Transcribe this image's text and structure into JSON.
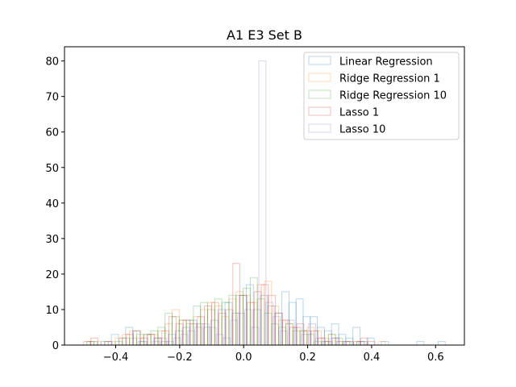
{
  "chart_data": {
    "type": "histogram",
    "title": "A1 E3 Set B",
    "xlabel": "",
    "ylabel": "",
    "xlim": [
      -0.56,
      0.69
    ],
    "ylim": [
      0,
      84
    ],
    "xticks": [
      -0.4,
      -0.2,
      0.0,
      0.2,
      0.4,
      0.6
    ],
    "xtick_labels": [
      "−0.4",
      "−0.2",
      "0.0",
      "0.2",
      "0.4",
      "0.6"
    ],
    "yticks": [
      0,
      10,
      20,
      30,
      40,
      50,
      60,
      70,
      80
    ],
    "ytick_labels": [
      "0",
      "10",
      "20",
      "30",
      "40",
      "50",
      "60",
      "70",
      "80"
    ],
    "legend_position": "top-right",
    "series": [
      {
        "name": "Linear Regression",
        "color": "#1f77b4",
        "bin_start": -0.48,
        "bin_width": 0.0222,
        "counts": [
          1,
          0,
          1,
          3,
          0,
          5,
          4,
          1,
          3,
          2,
          1,
          3,
          4,
          5,
          7,
          6,
          5,
          7,
          10,
          12,
          9,
          14,
          17,
          10,
          14,
          11,
          9,
          15,
          12,
          13,
          8,
          8,
          5,
          4,
          6,
          3,
          2,
          5,
          1,
          2,
          0,
          1,
          0,
          0,
          0,
          0,
          1,
          0,
          0,
          1
        ]
      },
      {
        "name": "Ridge Regression 1",
        "color": "#ff7f0e",
        "bin_start": -0.49,
        "bin_width": 0.0222,
        "counts": [
          1,
          1,
          0,
          1,
          2,
          3,
          4,
          2,
          3,
          3,
          4,
          6,
          10,
          7,
          6,
          8,
          10,
          12,
          11,
          8,
          13,
          15,
          14,
          12,
          17,
          18,
          11,
          7,
          6,
          5,
          4,
          5,
          4,
          2,
          3,
          1,
          1,
          0,
          1,
          0,
          0,
          1,
          0,
          0
        ]
      },
      {
        "name": "Ridge Regression 10",
        "color": "#2ca02c",
        "bin_start": -0.49,
        "bin_width": 0.0222,
        "counts": [
          1,
          0,
          1,
          0,
          1,
          2,
          2,
          3,
          3,
          4,
          5,
          9,
          8,
          7,
          7,
          11,
          12,
          10,
          13,
          12,
          14,
          14,
          16,
          19,
          13,
          9,
          6,
          5,
          6,
          4,
          4,
          3,
          1,
          1,
          3,
          2,
          1,
          0,
          1,
          0,
          0,
          0
        ]
      },
      {
        "name": "Lasso 1",
        "color": "#d62728",
        "bin_start": -0.5,
        "bin_width": 0.0222,
        "counts": [
          1,
          2,
          0,
          1,
          0,
          2,
          3,
          4,
          2,
          3,
          2,
          4,
          8,
          6,
          7,
          6,
          8,
          11,
          12,
          9,
          10,
          23,
          14,
          12,
          15,
          17,
          14,
          9,
          7,
          5,
          6,
          4,
          4,
          2,
          1,
          2,
          0,
          1,
          1,
          2,
          1,
          0,
          0
        ]
      },
      {
        "name": "Lasso 10",
        "color": "#9467bd",
        "bin_start": -0.33,
        "bin_width": 0.0222,
        "counts": [
          1,
          0,
          1,
          2,
          1,
          2,
          3,
          4,
          5,
          6,
          5,
          3,
          2,
          7,
          9,
          10,
          5,
          80,
          12,
          8,
          4,
          7,
          5,
          3,
          6,
          2,
          1,
          2,
          1,
          1,
          0,
          1
        ]
      }
    ]
  }
}
